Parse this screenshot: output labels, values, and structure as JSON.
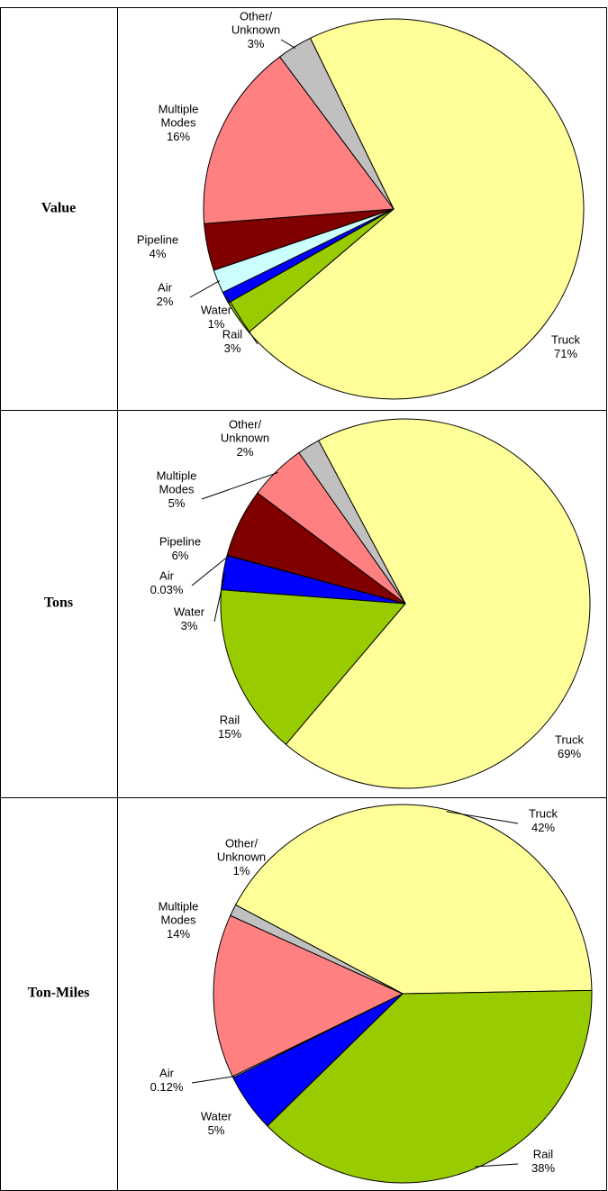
{
  "chart_data": [
    {
      "type": "pie",
      "title": "Value",
      "categories": [
        "Truck",
        "Rail",
        "Water",
        "Air",
        "Pipeline",
        "Multiple Modes",
        "Other/ Unknown"
      ],
      "values": [
        71,
        3,
        1,
        2,
        4,
        16,
        3
      ],
      "value_labels": [
        "71%",
        "3%",
        "1%",
        "2%",
        "4%",
        "16%",
        "3%"
      ],
      "colors": [
        "#ffff99",
        "#99cc00",
        "#0000ff",
        "#ccffff",
        "#800000",
        "#ff8080",
        "#c0c0c0"
      ]
    },
    {
      "type": "pie",
      "title": "Tons",
      "categories": [
        "Truck",
        "Rail",
        "Water",
        "Air",
        "Pipeline",
        "Multiple Modes",
        "Other/ Unknown"
      ],
      "values": [
        69,
        15,
        3,
        0.03,
        6,
        5,
        2
      ],
      "value_labels": [
        "69%",
        "15%",
        "3%",
        "0.03%",
        "6%",
        "5%",
        "2%"
      ],
      "colors": [
        "#ffff99",
        "#99cc00",
        "#0000ff",
        "#ccffff",
        "#800000",
        "#ff8080",
        "#c0c0c0"
      ]
    },
    {
      "type": "pie",
      "title": "Ton-Miles",
      "categories": [
        "Truck",
        "Rail",
        "Water",
        "Air",
        "Multiple Modes",
        "Other/ Unknown"
      ],
      "values": [
        42,
        38,
        5,
        0.12,
        14,
        1
      ],
      "value_labels": [
        "42%",
        "38%",
        "5%",
        "0.12%",
        "14%",
        "1%"
      ],
      "colors": [
        "#ffff99",
        "#99cc00",
        "#0000ff",
        "#ccffff",
        "#ff8080",
        "#c0c0c0"
      ]
    }
  ]
}
